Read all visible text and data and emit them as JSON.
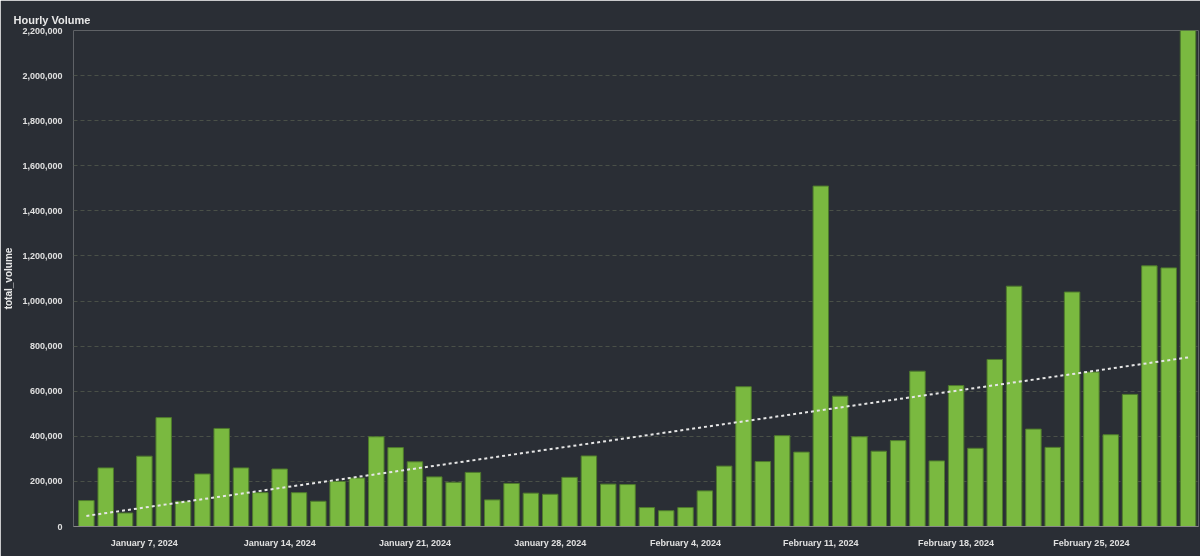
{
  "chart_data": {
    "type": "bar",
    "title": "Hourly Volume",
    "ylabel": "total_volume",
    "x": [
      "2024-01-04",
      "2024-01-05",
      "2024-01-06",
      "2024-01-07",
      "2024-01-08",
      "2024-01-09",
      "2024-01-10",
      "2024-01-11",
      "2024-01-12",
      "2024-01-13",
      "2024-01-14",
      "2024-01-15",
      "2024-01-16",
      "2024-01-17",
      "2024-01-18",
      "2024-01-19",
      "2024-01-20",
      "2024-01-21",
      "2024-01-22",
      "2024-01-23",
      "2024-01-24",
      "2024-01-25",
      "2024-01-26",
      "2024-01-27",
      "2024-01-28",
      "2024-01-29",
      "2024-01-30",
      "2024-01-31",
      "2024-02-01",
      "2024-02-02",
      "2024-02-03",
      "2024-02-04",
      "2024-02-05",
      "2024-02-06",
      "2024-02-07",
      "2024-02-08",
      "2024-02-09",
      "2024-02-10",
      "2024-02-11",
      "2024-02-12",
      "2024-02-13",
      "2024-02-14",
      "2024-02-15",
      "2024-02-16",
      "2024-02-17",
      "2024-02-18",
      "2024-02-19",
      "2024-02-20",
      "2024-02-21",
      "2024-02-22",
      "2024-02-23",
      "2024-02-24",
      "2024-02-25",
      "2024-02-26",
      "2024-02-27",
      "2024-02-28",
      "2024-02-29",
      "2024-03-01"
    ],
    "series": [
      {
        "color": "#7ab940",
        "values": [
          115000,
          260000,
          60000,
          312000,
          483000,
          112000,
          233000,
          435000,
          260000,
          150000,
          255000,
          150000,
          112000,
          200000,
          215000,
          398000,
          350000,
          287000,
          220000,
          196000,
          240000,
          118000,
          191000,
          148000,
          143000,
          218000,
          313000,
          188000,
          186000,
          84000,
          70000,
          84000,
          158000,
          268000,
          620000,
          288000,
          403000,
          330000,
          1510000,
          578000,
          398000,
          334000,
          381000,
          689000,
          291000,
          625000,
          347000,
          741000,
          1066000,
          432000,
          351000,
          1040000,
          685000,
          407000,
          586000,
          1156000,
          1147000,
          2200000
        ]
      },
      {
        "type": "line",
        "color": "#e6e6e6",
        "line_style": "dotted",
        "x": [
          "2024-01-04",
          "2024-03-01"
        ],
        "values": [
          47000,
          750000
        ]
      }
    ],
    "xlim": [
      "2024-01-03T08:00",
      "2024-03-01T13:00"
    ],
    "xticks": [
      {
        "value": "2024-01-07",
        "label": "January 7, 2024"
      },
      {
        "value": "2024-01-14",
        "label": "January 14, 2024"
      },
      {
        "value": "2024-01-21",
        "label": "January 21, 2024"
      },
      {
        "value": "2024-01-28",
        "label": "January 28, 2024"
      },
      {
        "value": "2024-02-04",
        "label": "February 4, 2024"
      },
      {
        "value": "2024-02-11",
        "label": "February 11, 2024"
      },
      {
        "value": "2024-02-18",
        "label": "February 18, 2024"
      },
      {
        "value": "2024-02-25",
        "label": "February 25, 2024"
      }
    ],
    "ylim": [
      0,
      2200000
    ],
    "yticks": [
      0,
      {
        "value": 200000,
        "label": "200,000"
      },
      {
        "value": 400000,
        "label": "400,000"
      },
      {
        "value": 600000,
        "label": "600,000"
      },
      {
        "value": 800000,
        "label": "800,000"
      },
      {
        "value": 1000000,
        "label": "1,000,000"
      },
      {
        "value": 1200000,
        "label": "1,200,000"
      },
      {
        "value": 1400000,
        "label": "1,400,000"
      },
      {
        "value": 1600000,
        "label": "1,600,000"
      },
      {
        "value": 1800000,
        "label": "1,800,000"
      },
      {
        "value": 2000000,
        "label": "2,000,000"
      },
      {
        "value": 2200000,
        "label": "2,200,000"
      }
    ],
    "grid": "y"
  }
}
